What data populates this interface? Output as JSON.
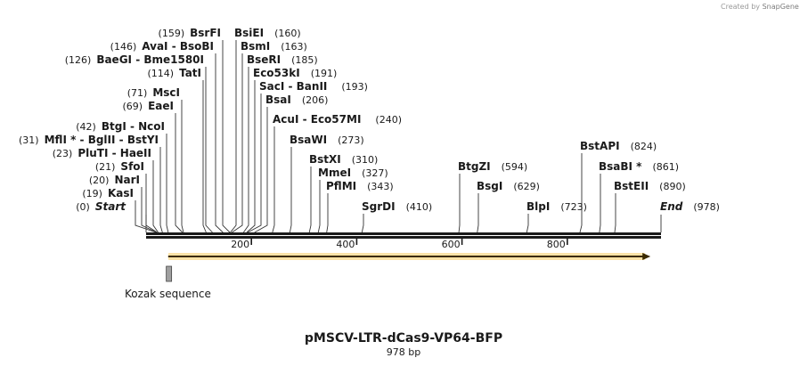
{
  "credit": {
    "created_by": "Created by",
    "brand": "SnapGene"
  },
  "sequence": {
    "name": "pMSCV-LTR-dCas9-VP64-BFP",
    "length_label": "978 bp",
    "length": 978
  },
  "ruler": {
    "ticks": [
      {
        "value": 200,
        "label": "200"
      },
      {
        "value": 400,
        "label": "400"
      },
      {
        "value": 600,
        "label": "600"
      },
      {
        "value": 800,
        "label": "800"
      }
    ]
  },
  "features": [
    {
      "name": "orf-arrow",
      "type": "arrow",
      "start": 42,
      "end": 958,
      "color": "#f3b731",
      "label": ""
    },
    {
      "name": "kozak-sequence",
      "type": "box",
      "start": 40,
      "end": 45,
      "color": "#a0a0a0",
      "label": "Kozak sequence"
    }
  ],
  "sites": [
    {
      "name": "BsrFI",
      "pos": 159,
      "pos_label": "(159)",
      "label_left": true,
      "row": 41
    },
    {
      "name": "BsiEI",
      "pos": 160,
      "pos_label": "(160)",
      "label_left": false,
      "row": 41
    },
    {
      "name": "AvaI - BsoBI",
      "pos": 146,
      "pos_label": "(146)",
      "label_left": true,
      "row": 56
    },
    {
      "name": "BsmI",
      "pos": 163,
      "pos_label": "(163)",
      "label_left": false,
      "row": 56
    },
    {
      "name": "BaeGI - Bme1580I",
      "pos": 126,
      "pos_label": "(126)",
      "label_left": true,
      "row": 71
    },
    {
      "name": "BseRI",
      "pos": 185,
      "pos_label": "(185)",
      "label_left": false,
      "row": 71
    },
    {
      "name": "TatI",
      "pos": 114,
      "pos_label": "(114)",
      "label_left": true,
      "row": 86
    },
    {
      "name": "Eco53kI",
      "pos": 191,
      "pos_label": "(191)",
      "label_left": false,
      "row": 86
    },
    {
      "name": "SacI - BanII",
      "pos": 193,
      "pos_label": "(193)",
      "label_left": false,
      "row": 101
    },
    {
      "name": "MscI",
      "pos": 71,
      "pos_label": "(71)",
      "label_left": true,
      "row": 108
    },
    {
      "name": "BsaI",
      "pos": 206,
      "pos_label": "(206)",
      "label_left": false,
      "row": 116
    },
    {
      "name": "EaeI",
      "pos": 69,
      "pos_label": "(69)",
      "label_left": true,
      "row": 123
    },
    {
      "name": "AcuI - Eco57MI",
      "pos": 240,
      "pos_label": "(240)",
      "label_left": false,
      "row": 138
    },
    {
      "name": "BtgI - NcoI",
      "pos": 42,
      "pos_label": "(42)",
      "label_left": true,
      "row": 146
    },
    {
      "name": "BsaWI",
      "pos": 273,
      "pos_label": "(273)",
      "label_left": false,
      "row": 161
    },
    {
      "name": "MflI * - BglII - BstYI",
      "pos": 31,
      "pos_label": "(31)",
      "label_left": true,
      "row": 161
    },
    {
      "name": "PluTI - HaeII",
      "pos": 23,
      "pos_label": "(23)",
      "label_left": true,
      "row": 176
    },
    {
      "name": "BstAPI",
      "pos": 824,
      "pos_label": "(824)",
      "label_left": false,
      "row": 168
    },
    {
      "name": "BstXI",
      "pos": 310,
      "pos_label": "(310)",
      "label_left": false,
      "row": 183
    },
    {
      "name": "SfoI",
      "pos": 21,
      "pos_label": "(21)",
      "label_left": true,
      "row": 191
    },
    {
      "name": "BtgZI",
      "pos": 594,
      "pos_label": "(594)",
      "label_left": false,
      "row": 191
    },
    {
      "name": "BsaBI *",
      "pos": 861,
      "pos_label": "(861)",
      "label_left": false,
      "row": 191
    },
    {
      "name": "MmeI",
      "pos": 327,
      "pos_label": "(327)",
      "label_left": false,
      "row": 198
    },
    {
      "name": "NarI",
      "pos": 20,
      "pos_label": "(20)",
      "label_left": true,
      "row": 206
    },
    {
      "name": "PflMI",
      "pos": 343,
      "pos_label": "(343)",
      "label_left": false,
      "row": 213
    },
    {
      "name": "BsgI",
      "pos": 629,
      "pos_label": "(629)",
      "label_left": false,
      "row": 213
    },
    {
      "name": "BstEII",
      "pos": 890,
      "pos_label": "(890)",
      "label_left": false,
      "row": 213
    },
    {
      "name": "KasI",
      "pos": 19,
      "pos_label": "(19)",
      "label_left": true,
      "row": 221
    },
    {
      "name": "Start",
      "pos": 0,
      "pos_label": "(0)",
      "label_left": true,
      "row": 236,
      "italic": true
    },
    {
      "name": "SgrDI",
      "pos": 410,
      "pos_label": "(410)",
      "label_left": false,
      "row": 236
    },
    {
      "name": "BlpI",
      "pos": 723,
      "pos_label": "(723)",
      "label_left": false,
      "row": 236
    },
    {
      "name": "End",
      "pos": 978,
      "pos_label": "(978)",
      "label_left": false,
      "row": 236,
      "italic": true
    }
  ]
}
